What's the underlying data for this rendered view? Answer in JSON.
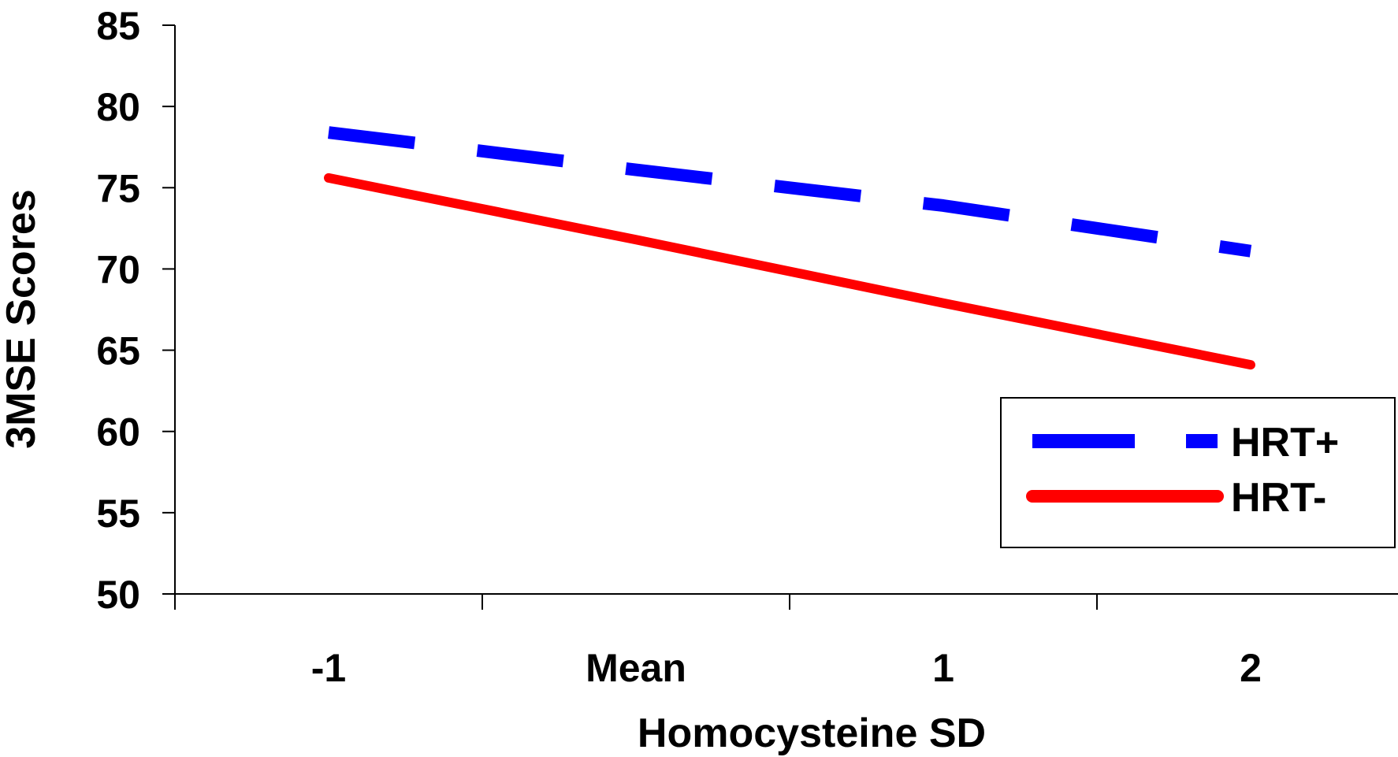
{
  "chart_data": {
    "type": "line",
    "title": "",
    "xlabel": "Homocysteine SD",
    "ylabel": "3MSE Scores",
    "categories": [
      "-1",
      "Mean",
      "1",
      "2"
    ],
    "ylim": [
      50,
      85
    ],
    "yticks": [
      50,
      55,
      60,
      65,
      70,
      75,
      80,
      85
    ],
    "legend": "bottom-right",
    "grid": false,
    "series": [
      {
        "name": "HRT+",
        "values": [
          78.4,
          76.1,
          73.9,
          71.1
        ],
        "color": "#0000ff",
        "style": "dashed"
      },
      {
        "name": "HRT-",
        "values": [
          75.6,
          71.8,
          67.9,
          64.1
        ],
        "color": "#ff0000",
        "style": "solid"
      }
    ]
  }
}
